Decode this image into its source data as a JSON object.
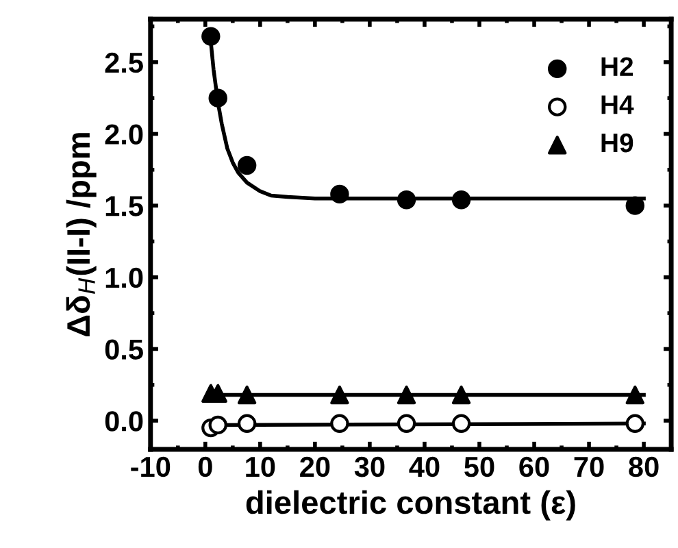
{
  "chart_data": {
    "type": "scatter",
    "xlabel": "dielectric constant (ε)",
    "ylabel": "Δδ$_{H}$(II-I) /ppm",
    "xlim": [
      -10,
      85
    ],
    "xticks": [
      -10,
      0,
      10,
      20,
      30,
      40,
      50,
      60,
      70,
      80
    ],
    "ylim": [
      -0.2,
      2.8
    ],
    "yticks": [
      {
        "value": 0,
        "label": "0.0"
      },
      0.5,
      {
        "value": 1,
        "label": "1.0"
      },
      1.5,
      {
        "value": 2,
        "label": "2.0"
      },
      2.5
    ],
    "legend": "top right",
    "grid": false,
    "series": [
      {
        "name": "H2",
        "marker": "circle",
        "color": "#000000",
        "x": [
          1,
          2.3,
          7.6,
          24.5,
          36.7,
          46.7,
          78.4
        ],
        "values": [
          2.68,
          2.25,
          1.78,
          1.58,
          1.54,
          1.54,
          1.5
        ]
      },
      {
        "name": "H4",
        "marker": "circle",
        "color": "#ffffff",
        "x": [
          1,
          2.3,
          7.6,
          24.5,
          36.7,
          46.7,
          78.4
        ],
        "values": [
          -0.05,
          -0.03,
          -0.02,
          -0.02,
          -0.02,
          -0.02,
          -0.02
        ]
      },
      {
        "name": "H9",
        "marker": "triangle",
        "color": "#000000",
        "x": [
          1,
          2.3,
          7.6,
          24.5,
          36.7,
          46.7,
          78.4
        ],
        "values": [
          0.19,
          0.19,
          0.18,
          0.18,
          0.18,
          0.18,
          0.18
        ]
      },
      {
        "type": "line",
        "color": "#000000",
        "x": [
          0.8,
          1.5,
          2.3,
          3,
          4,
          5,
          6,
          7.6,
          10,
          12,
          15,
          20,
          30,
          50,
          80
        ],
        "values": [
          2.72,
          2.45,
          2.22,
          2.07,
          1.9,
          1.8,
          1.73,
          1.66,
          1.6,
          1.57,
          1.56,
          1.55,
          1.55,
          1.55,
          1.55
        ]
      },
      {
        "type": "line",
        "color": "#000000",
        "x": [
          2,
          80
        ],
        "values": [
          -0.03,
          -0.02
        ]
      },
      {
        "type": "line",
        "color": "#000000",
        "x": [
          1,
          80
        ],
        "values": [
          0.18,
          0.18
        ]
      }
    ]
  }
}
